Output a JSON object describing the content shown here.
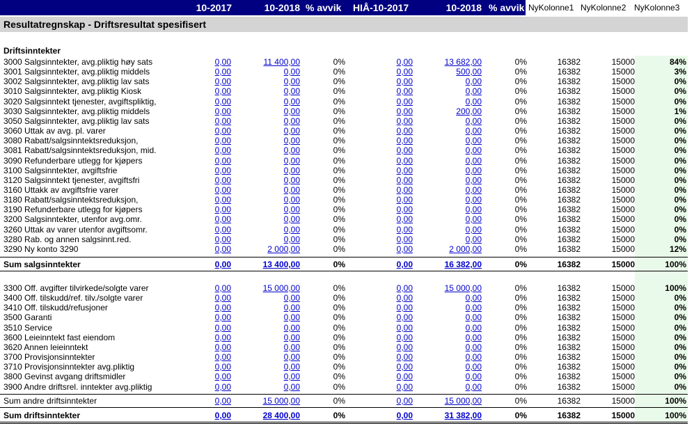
{
  "header": {
    "col1": "10-2017",
    "col2": "10-2018",
    "col3": "% avvik",
    "col4": "HIÅ-10-2017",
    "col5": "10-2018",
    "col6": "% avvik",
    "ny1": "NyKolonne1",
    "ny2": "NyKolonne2",
    "ny3": "NyKolonne3",
    "band_color": "#000080"
  },
  "title": "Resultatregnskap - Driftsresultat spesifisert",
  "section_heading": "Driftsinntekter",
  "group1": [
    {
      "label": "3000 Salgsinntekter, avg.pliktig høy sats",
      "v1": "0,00",
      "v2": "11 400,00",
      "p1": "0%",
      "v4": "0,00",
      "v5": "13 682,00",
      "p2": "0%",
      "n1": "16382",
      "n2": "15000",
      "n3": "84%"
    },
    {
      "label": "3001 Salgsinntekter, avg.pliktig middels",
      "v1": "0,00",
      "v2": "0,00",
      "p1": "0%",
      "v4": "0,00",
      "v5": "500,00",
      "p2": "0%",
      "n1": "16382",
      "n2": "15000",
      "n3": "3%"
    },
    {
      "label": "3002 Salgsinntekter, avg.pliktig lav sats",
      "v1": "0,00",
      "v2": "0,00",
      "p1": "0%",
      "v4": "0,00",
      "v5": "0,00",
      "p2": "0%",
      "n1": "16382",
      "n2": "15000",
      "n3": "0%"
    },
    {
      "label": "3010 Salgsinntekter, avg.pliktig Kiosk",
      "v1": "0,00",
      "v2": "0,00",
      "p1": "0%",
      "v4": "0,00",
      "v5": "0,00",
      "p2": "0%",
      "n1": "16382",
      "n2": "15000",
      "n3": "0%"
    },
    {
      "label": "3020 Salgsinntekt tjenester, avgiftspliktig,",
      "v1": "0,00",
      "v2": "0,00",
      "p1": "0%",
      "v4": "0,00",
      "v5": "0,00",
      "p2": "0%",
      "n1": "16382",
      "n2": "15000",
      "n3": "0%"
    },
    {
      "label": "3030 Salgsinntekter, avg.pliktig middels",
      "v1": "0,00",
      "v2": "0,00",
      "p1": "0%",
      "v4": "0,00",
      "v5": "200,00",
      "p2": "0%",
      "n1": "16382",
      "n2": "15000",
      "n3": "1%"
    },
    {
      "label": "3050 Salgsinntekter, avg.pliktig lav sats",
      "v1": "0,00",
      "v2": "0,00",
      "p1": "0%",
      "v4": "0,00",
      "v5": "0,00",
      "p2": "0%",
      "n1": "16382",
      "n2": "15000",
      "n3": "0%"
    },
    {
      "label": "3060 Uttak av avg. pl. varer",
      "v1": "0,00",
      "v2": "0,00",
      "p1": "0%",
      "v4": "0,00",
      "v5": "0,00",
      "p2": "0%",
      "n1": "16382",
      "n2": "15000",
      "n3": "0%"
    },
    {
      "label": "3080 Rabatt/salgsinntektsreduksjon,",
      "v1": "0,00",
      "v2": "0,00",
      "p1": "0%",
      "v4": "0,00",
      "v5": "0,00",
      "p2": "0%",
      "n1": "16382",
      "n2": "15000",
      "n3": "0%"
    },
    {
      "label": "3081 Rabatt/salgsinntektsreduksjon, mid.",
      "v1": "0,00",
      "v2": "0,00",
      "p1": "0%",
      "v4": "0,00",
      "v5": "0,00",
      "p2": "0%",
      "n1": "16382",
      "n2": "15000",
      "n3": "0%"
    },
    {
      "label": "3090 Refunderbare utlegg for kjøpers",
      "v1": "0,00",
      "v2": "0,00",
      "p1": "0%",
      "v4": "0,00",
      "v5": "0,00",
      "p2": "0%",
      "n1": "16382",
      "n2": "15000",
      "n3": "0%"
    },
    {
      "label": "3100 Salgsinntekter, avgiftsfrie",
      "v1": "0,00",
      "v2": "0,00",
      "p1": "0%",
      "v4": "0,00",
      "v5": "0,00",
      "p2": "0%",
      "n1": "16382",
      "n2": "15000",
      "n3": "0%"
    },
    {
      "label": "3120 Salgsinntekt tjenester, avgiftsfri",
      "v1": "0,00",
      "v2": "0,00",
      "p1": "0%",
      "v4": "0,00",
      "v5": "0,00",
      "p2": "0%",
      "n1": "16382",
      "n2": "15000",
      "n3": "0%"
    },
    {
      "label": "3160 Uttakk av avgiftsfrie varer",
      "v1": "0,00",
      "v2": "0,00",
      "p1": "0%",
      "v4": "0,00",
      "v5": "0,00",
      "p2": "0%",
      "n1": "16382",
      "n2": "15000",
      "n3": "0%"
    },
    {
      "label": "3180 Rabatt/salgsinntektsreduksjon,",
      "v1": "0,00",
      "v2": "0,00",
      "p1": "0%",
      "v4": "0,00",
      "v5": "0,00",
      "p2": "0%",
      "n1": "16382",
      "n2": "15000",
      "n3": "0%"
    },
    {
      "label": "3190 Refunderbare utlegg for kjøpers",
      "v1": "0,00",
      "v2": "0,00",
      "p1": "0%",
      "v4": "0,00",
      "v5": "0,00",
      "p2": "0%",
      "n1": "16382",
      "n2": "15000",
      "n3": "0%"
    },
    {
      "label": "3200 Salgsinntekter, utenfor avg.omr.",
      "v1": "0,00",
      "v2": "0,00",
      "p1": "0%",
      "v4": "0,00",
      "v5": "0,00",
      "p2": "0%",
      "n1": "16382",
      "n2": "15000",
      "n3": "0%"
    },
    {
      "label": "3260 Uttak av varer utenfor avgiftsomr.",
      "v1": "0,00",
      "v2": "0,00",
      "p1": "0%",
      "v4": "0,00",
      "v5": "0,00",
      "p2": "0%",
      "n1": "16382",
      "n2": "15000",
      "n3": "0%"
    },
    {
      "label": "3280 Rab. og annen salgsinnt.red.",
      "v1": "0,00",
      "v2": "0,00",
      "p1": "0%",
      "v4": "0,00",
      "v5": "0,00",
      "p2": "0%",
      "n1": "16382",
      "n2": "15000",
      "n3": "0%"
    },
    {
      "label": "3290 Ny konto 3290",
      "v1": "0,00",
      "v2": "2 000,00",
      "p1": "0%",
      "v4": "0,00",
      "v5": "2 000,00",
      "p2": "0%",
      "n1": "16382",
      "n2": "15000",
      "n3": "12%"
    }
  ],
  "sum1": {
    "label": "Sum salgsinntekter",
    "v1": "0,00",
    "v2": "13 400,00",
    "p1": "0%",
    "v4": "0,00",
    "v5": "16 382,00",
    "p2": "0%",
    "n1": "16382",
    "n2": "15000",
    "n3": "100%"
  },
  "group2": [
    {
      "label": "3300 Off. avgifter tilvirkede/solgte varer",
      "v1": "0,00",
      "v2": "15 000,00",
      "p1": "0%",
      "v4": "0,00",
      "v5": "15 000,00",
      "p2": "0%",
      "n1": "16382",
      "n2": "15000",
      "n3": "100%"
    },
    {
      "label": "3400 Off. tilskudd/ref. tilv./solgte varer",
      "v1": "0,00",
      "v2": "0,00",
      "p1": "0%",
      "v4": "0,00",
      "v5": "0,00",
      "p2": "0%",
      "n1": "16382",
      "n2": "15000",
      "n3": "0%"
    },
    {
      "label": "3410 Off. tilskudd/refusjoner",
      "v1": "0,00",
      "v2": "0,00",
      "p1": "0%",
      "v4": "0,00",
      "v5": "0,00",
      "p2": "0%",
      "n1": "16382",
      "n2": "15000",
      "n3": "0%"
    },
    {
      "label": "3500 Garanti",
      "v1": "0,00",
      "v2": "0,00",
      "p1": "0%",
      "v4": "0,00",
      "v5": "0,00",
      "p2": "0%",
      "n1": "16382",
      "n2": "15000",
      "n3": "0%"
    },
    {
      "label": "3510 Service",
      "v1": "0,00",
      "v2": "0,00",
      "p1": "0%",
      "v4": "0,00",
      "v5": "0,00",
      "p2": "0%",
      "n1": "16382",
      "n2": "15000",
      "n3": "0%"
    },
    {
      "label": "3600 Leieinntekt fast eiendom",
      "v1": "0,00",
      "v2": "0,00",
      "p1": "0%",
      "v4": "0,00",
      "v5": "0,00",
      "p2": "0%",
      "n1": "16382",
      "n2": "15000",
      "n3": "0%"
    },
    {
      "label": "3620 Annen leieinntekt",
      "v1": "0,00",
      "v2": "0,00",
      "p1": "0%",
      "v4": "0,00",
      "v5": "0,00",
      "p2": "0%",
      "n1": "16382",
      "n2": "15000",
      "n3": "0%"
    },
    {
      "label": "3700 Provisjonsinntekter",
      "v1": "0,00",
      "v2": "0,00",
      "p1": "0%",
      "v4": "0,00",
      "v5": "0,00",
      "p2": "0%",
      "n1": "16382",
      "n2": "15000",
      "n3": "0%"
    },
    {
      "label": "3710 Provisjonsinntekter avg.pliktig",
      "v1": "0,00",
      "v2": "0,00",
      "p1": "0%",
      "v4": "0,00",
      "v5": "0,00",
      "p2": "0%",
      "n1": "16382",
      "n2": "15000",
      "n3": "0%"
    },
    {
      "label": "3800 Gevinst avgang driftsmidler",
      "v1": "0,00",
      "v2": "0,00",
      "p1": "0%",
      "v4": "0,00",
      "v5": "0,00",
      "p2": "0%",
      "n1": "16382",
      "n2": "15000",
      "n3": "0%"
    },
    {
      "label": "3900 Andre driftsrel. inntekter avg.pliktig",
      "v1": "0,00",
      "v2": "0,00",
      "p1": "0%",
      "v4": "0,00",
      "v5": "0,00",
      "p2": "0%",
      "n1": "16382",
      "n2": "15000",
      "n3": "0%"
    }
  ],
  "sum2": {
    "label": "Sum andre driftsinntekter",
    "v1": "0,00",
    "v2": "15 000,00",
    "p1": "0%",
    "v4": "0,00",
    "v5": "15 000,00",
    "p2": "0%",
    "n1": "16382",
    "n2": "15000",
    "n3": "100%"
  },
  "sum3": {
    "label": "Sum driftsinntekter",
    "v1": "0,00",
    "v2": "28 400,00",
    "p1": "0%",
    "v4": "0,00",
    "v5": "31 382,00",
    "p2": "0%",
    "n1": "16382",
    "n2": "15000",
    "n3": "100%"
  }
}
